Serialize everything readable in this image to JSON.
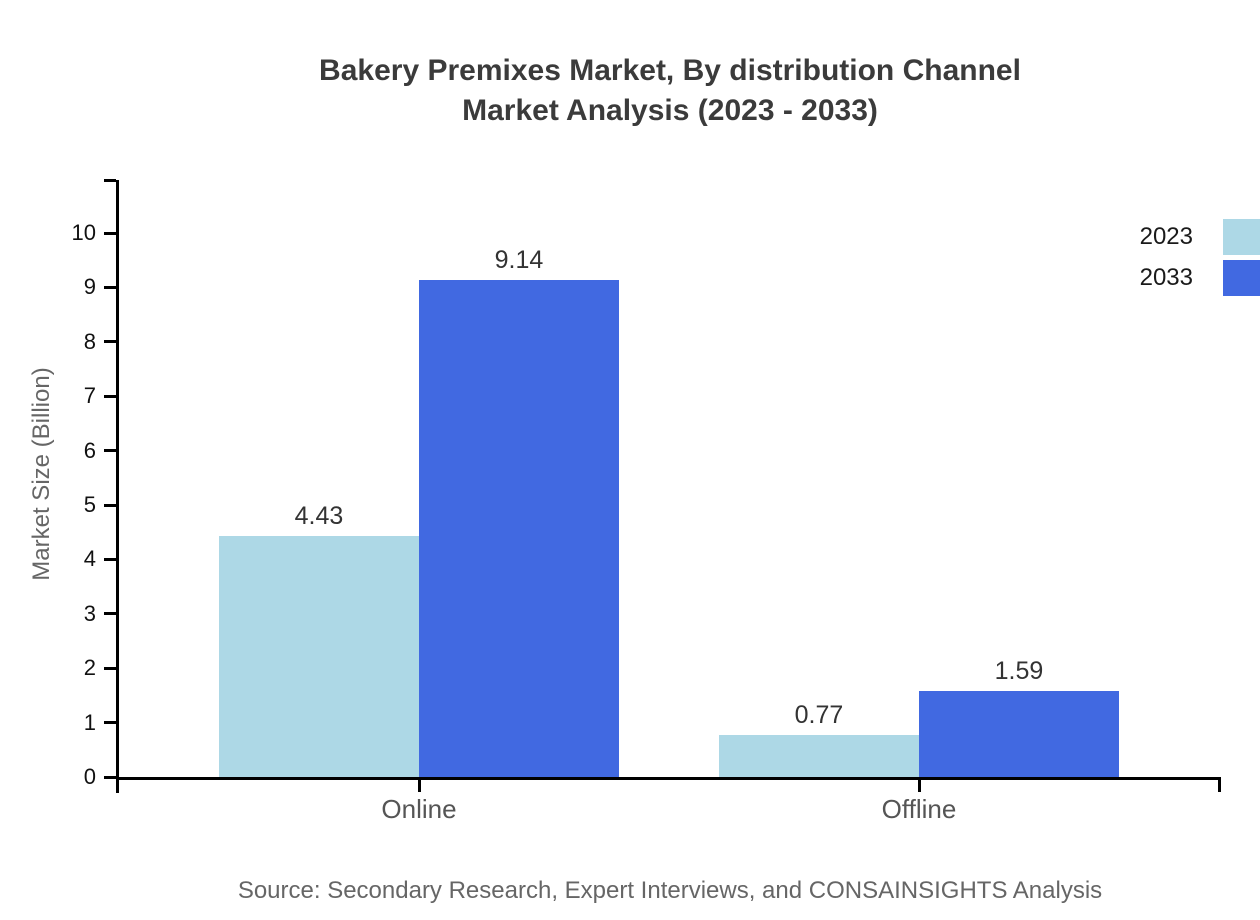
{
  "chart_data": {
    "type": "bar",
    "title": "Bakery Premixes Market, By distribution Channel Market Analysis (2023 - 2033)",
    "title_lines": [
      "Bakery Premixes Market, By distribution Channel",
      "Market Analysis (2023 - 2033)"
    ],
    "categories": [
      "Online",
      "Offline"
    ],
    "series": [
      {
        "name": "2023",
        "color": "#ADD8E6",
        "values": [
          4.43,
          0.77
        ]
      },
      {
        "name": "2033",
        "color": "#4169E1",
        "values": [
          9.14,
          1.59
        ]
      }
    ],
    "value_label_format": "2-decimals",
    "xlabel": "",
    "ylabel": "Market Size (Billion)",
    "ylim": [
      0,
      10
    ],
    "ytick_step": 1,
    "grid": false,
    "legend_position": "top-right",
    "source": "Source: Secondary Research, Expert Interviews, and CONSAINSIGHTS Analysis"
  },
  "colors": {
    "series_2023": "#ADD8E6",
    "series_2033": "#4169E1",
    "title_text": "#3b3b3b",
    "axis_line": "#000000",
    "tick_label": "#111111",
    "category_label": "#555555",
    "value_label": "#333333",
    "muted_text": "#666666",
    "background": "#ffffff"
  }
}
